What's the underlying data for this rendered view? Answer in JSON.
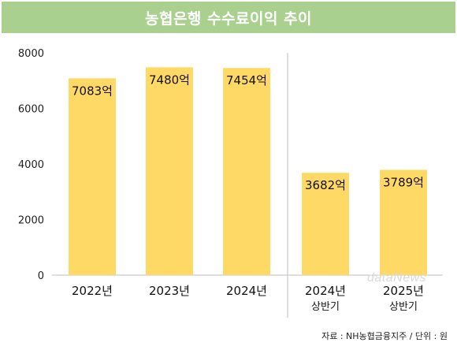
{
  "header": {
    "title": "농협은행 수수료이익 추이"
  },
  "footer": {
    "source": "자료 : NH농협금융지주 / 단위 : 원"
  },
  "watermark": {
    "text": "dataNews"
  },
  "colors": {
    "bar": "#ffd966",
    "header": "#a9d08e",
    "grid": "#bfbfbf",
    "divider": "#bfbfbf"
  },
  "chart_data": {
    "type": "bar",
    "title": "농협은행 수수료이익 추이",
    "categories": [
      [
        "2022년"
      ],
      [
        "2023년"
      ],
      [
        "2024년"
      ],
      [
        "2024년",
        "상반기"
      ],
      [
        "2025년",
        "상반기"
      ]
    ],
    "values": [
      7083,
      7480,
      7454,
      3682,
      3789
    ],
    "data_labels": [
      "7083억",
      "7480억",
      "7454억",
      "3682억",
      "3789억"
    ],
    "ylim": [
      0,
      8000
    ],
    "yticks": [
      0,
      2000,
      4000,
      6000,
      8000
    ],
    "xlabel": "",
    "ylabel": "",
    "grid": false,
    "divider_after_index": 2
  }
}
